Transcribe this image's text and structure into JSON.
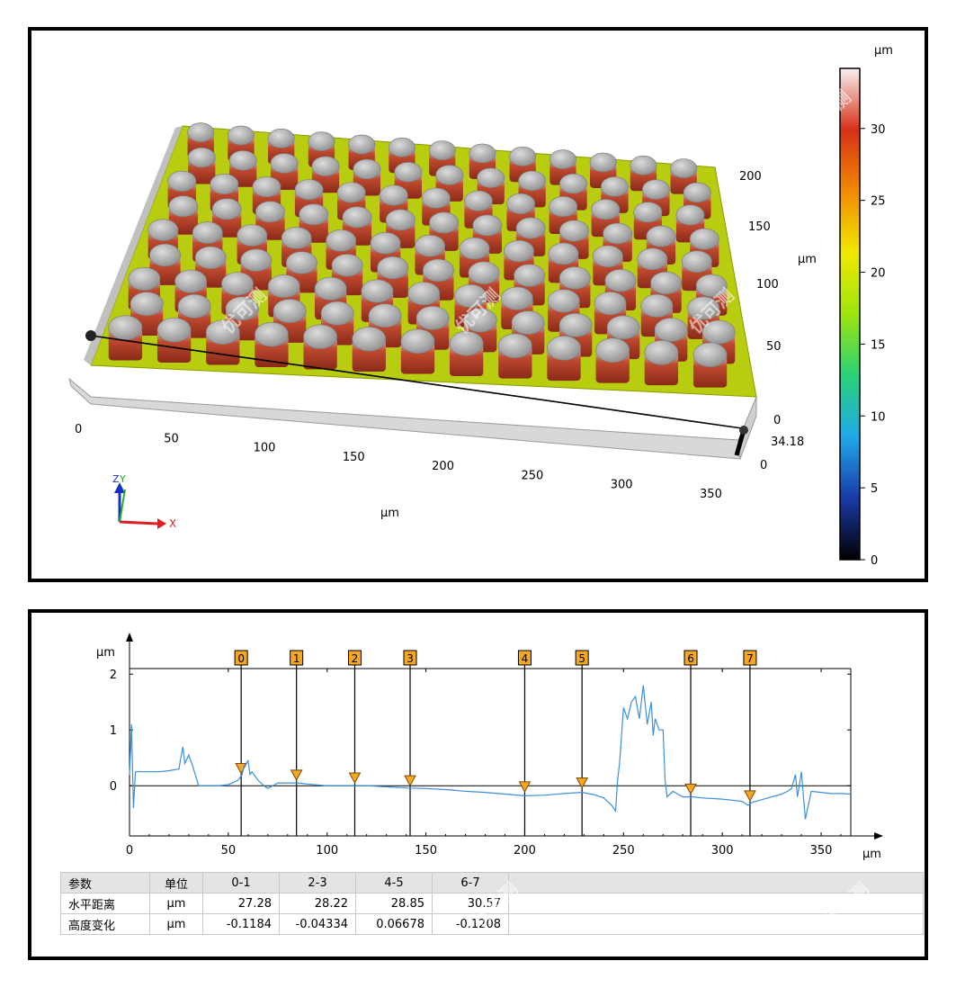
{
  "surface_3d": {
    "x_axis_unit": "µm",
    "x_ticks": [
      "0",
      "50",
      "100",
      "150",
      "200",
      "250",
      "300",
      "350"
    ],
    "y_axis_unit": "µm",
    "y_ticks": [
      "0",
      "50",
      "100",
      "150",
      "200"
    ],
    "z_readout": "34.18",
    "z_zero": "0",
    "triad_labels": {
      "z": "Z",
      "y": "Y",
      "x": "X"
    },
    "colorbar": {
      "unit": "µm",
      "ticks": [
        "0",
        "5",
        "10",
        "15",
        "20",
        "25",
        "30"
      ],
      "range": [
        0,
        34.18
      ],
      "colors": [
        "#000000",
        "#1a3aa8",
        "#1fa8e8",
        "#28d278",
        "#9ee40e",
        "#f0e800",
        "#f08a00",
        "#d83018",
        "#f8f0f0"
      ]
    },
    "colors": {
      "background_fill": "#ffffff",
      "base": "#b0c800",
      "pillar_top": "#9a9a9a",
      "pillar_side": "#b03020",
      "profile_line": "#000000"
    }
  },
  "chart_data": {
    "type": "line",
    "ylabel": "µm",
    "xlabel": "µm",
    "xlim": [
      0,
      365
    ],
    "ylim": [
      -0.9,
      2.1
    ],
    "x_ticks": [
      "0",
      "50",
      "100",
      "150",
      "200",
      "250",
      "300",
      "350"
    ],
    "y_ticks": [
      "2",
      "1",
      "0"
    ],
    "grid": false,
    "line_color": "#3a8fdc",
    "series": [
      {
        "x": [
          0,
          1,
          2,
          3,
          5,
          10,
          15,
          20,
          25,
          27,
          28,
          30,
          32,
          35,
          40,
          45,
          50,
          55,
          57,
          58,
          60,
          61,
          62,
          65,
          68,
          70,
          75,
          80,
          85,
          90,
          100,
          110,
          120,
          130,
          140,
          150,
          160,
          170,
          180,
          190,
          200,
          210,
          220,
          229,
          235,
          240,
          244,
          246,
          247,
          248,
          250,
          252,
          254,
          256,
          258,
          260,
          262,
          264,
          265,
          266,
          268,
          270,
          271,
          272,
          275,
          280,
          283,
          285,
          290,
          300,
          305,
          310,
          313,
          315,
          320,
          325,
          330,
          333,
          335,
          337,
          338,
          340,
          342,
          345,
          350,
          355,
          360,
          365
        ],
        "y": [
          0.2,
          1.1,
          -0.4,
          0.25,
          0.25,
          0.25,
          0.25,
          0.27,
          0.3,
          0.7,
          0.4,
          0.55,
          0.35,
          0.0,
          0.0,
          0.0,
          0.02,
          0.1,
          0.2,
          0.35,
          0.45,
          0.2,
          0.25,
          0.1,
          0.0,
          -0.05,
          0.05,
          0.05,
          0.05,
          0.03,
          0.0,
          0.0,
          0.0,
          -0.02,
          -0.04,
          -0.05,
          -0.07,
          -0.1,
          -0.12,
          -0.15,
          -0.18,
          -0.17,
          -0.14,
          -0.12,
          -0.16,
          -0.22,
          -0.35,
          -0.45,
          0.1,
          0.4,
          1.4,
          1.2,
          1.5,
          1.6,
          1.2,
          1.8,
          1.1,
          1.5,
          0.9,
          1.2,
          1.0,
          1.0,
          0.1,
          -0.2,
          -0.1,
          -0.2,
          -0.2,
          -0.2,
          -0.22,
          -0.24,
          -0.26,
          -0.28,
          -0.35,
          -0.3,
          -0.25,
          -0.2,
          -0.15,
          -0.1,
          -0.05,
          0.2,
          -0.2,
          0.25,
          -0.6,
          -0.1,
          -0.12,
          -0.14,
          -0.14,
          -0.15
        ]
      }
    ],
    "markers": [
      {
        "label": "0",
        "x": 56.5,
        "y": 0.27
      },
      {
        "label": "1",
        "x": 84.5,
        "y": 0.15
      },
      {
        "label": "2",
        "x": 114,
        "y": 0.1
      },
      {
        "label": "3",
        "x": 142,
        "y": 0.05
      },
      {
        "label": "4",
        "x": 200,
        "y": -0.06
      },
      {
        "label": "5",
        "x": 229,
        "y": 0.01
      },
      {
        "label": "6",
        "x": 284,
        "y": -0.1
      },
      {
        "label": "7",
        "x": 314,
        "y": -0.22
      }
    ],
    "marker_color": "#f5a623"
  },
  "table": {
    "headers": [
      "参数",
      "单位",
      "0-1",
      "2-3",
      "4-5",
      "6-7"
    ],
    "rows": [
      [
        "水平距离",
        "µm",
        "27.28",
        "28.22",
        "28.85",
        "30.57"
      ],
      [
        "高度变化",
        "µm",
        "-0.1184",
        "-0.04334",
        "0.06678",
        "-0.1208"
      ]
    ]
  },
  "watermark": "优可测"
}
